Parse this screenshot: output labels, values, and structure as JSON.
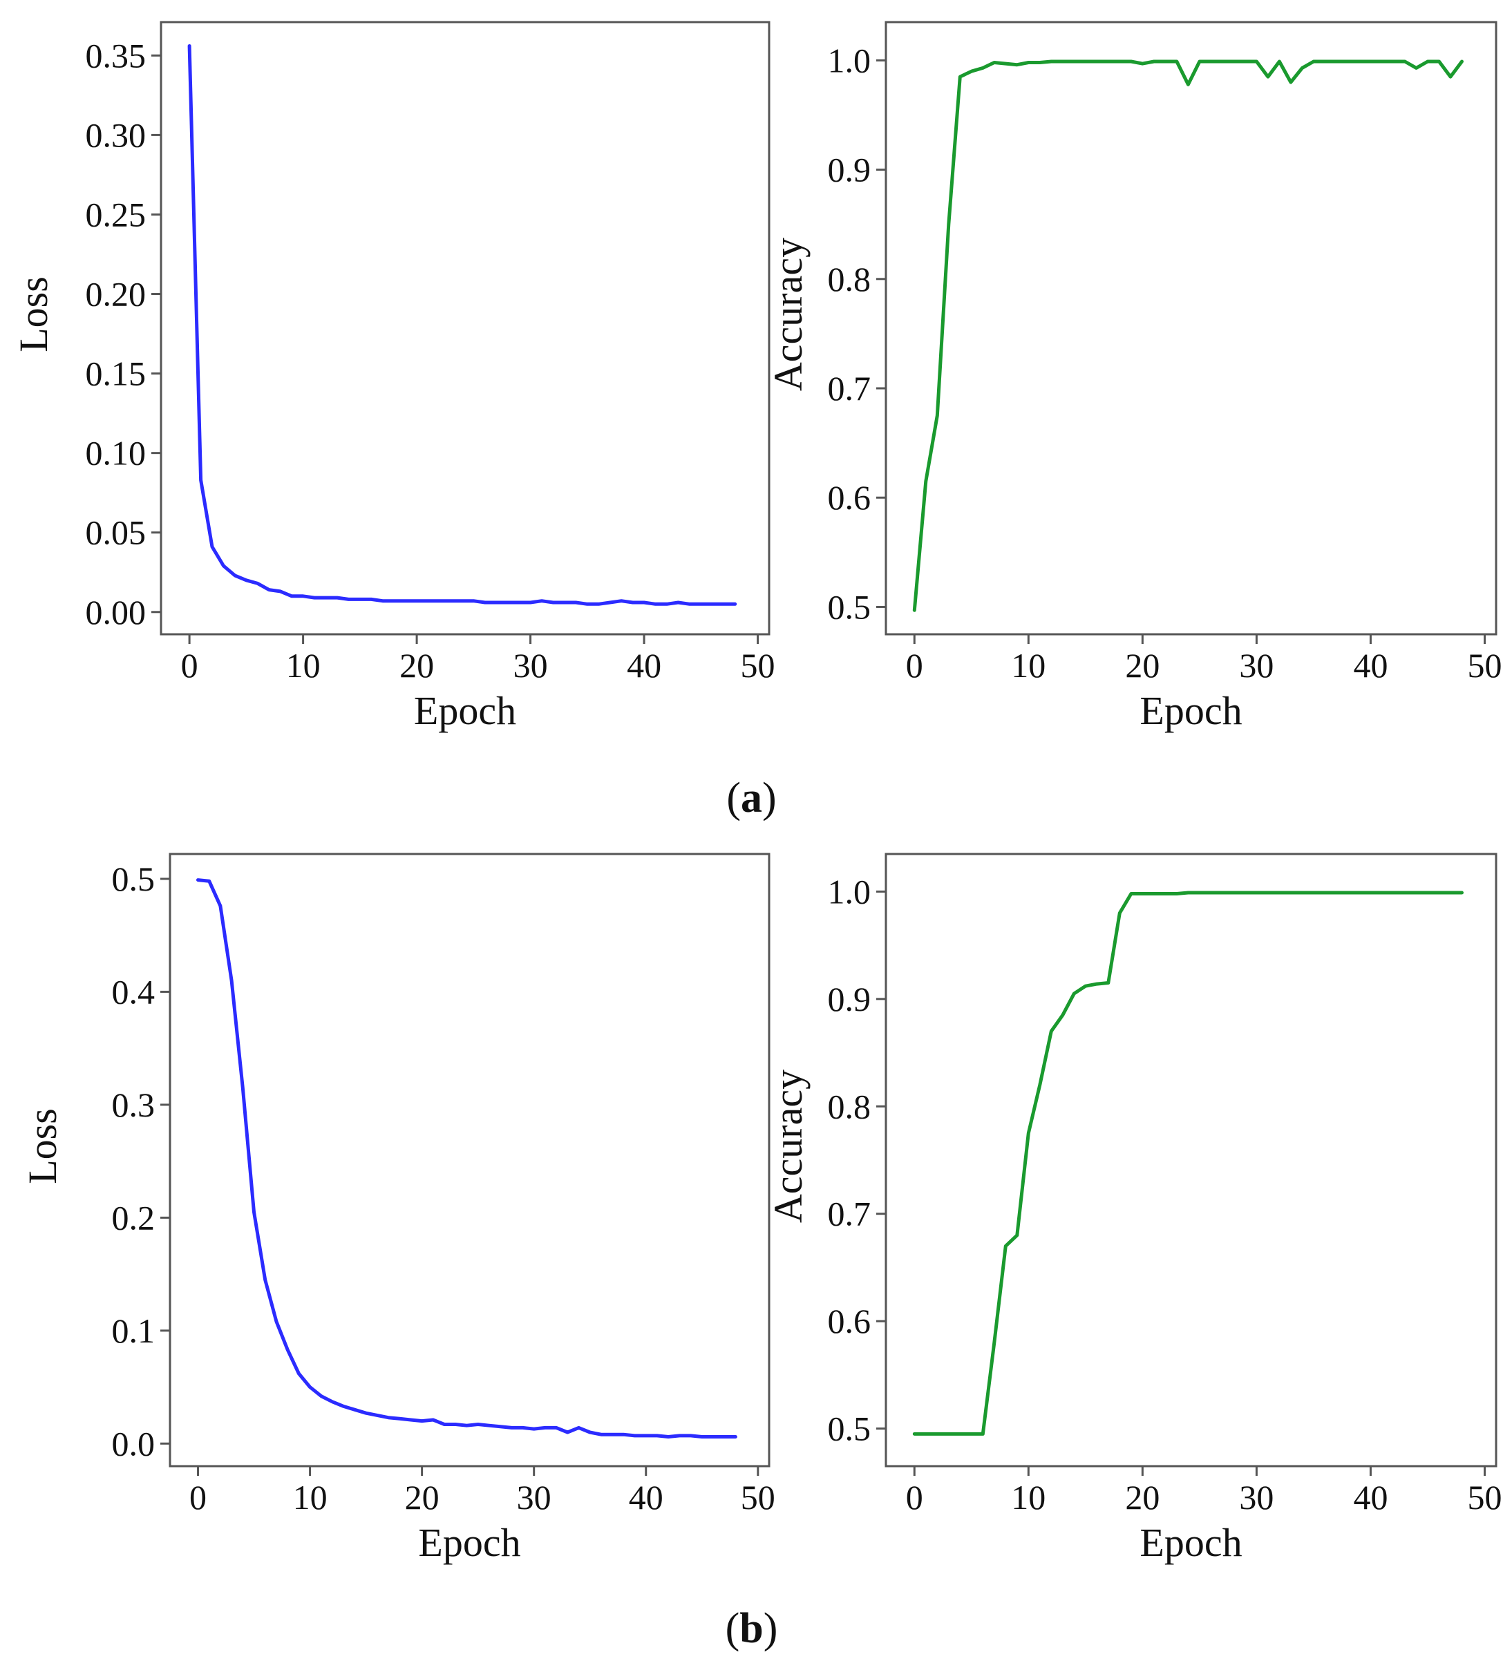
{
  "figure_labels": [
    {
      "open": "(",
      "letter": "a",
      "close": ")"
    },
    {
      "open": "(",
      "letter": "b",
      "close": ")"
    }
  ],
  "chart_data": [
    {
      "id": "a-loss",
      "type": "line",
      "xlabel": "Epoch",
      "ylabel": "Loss",
      "xlim": [
        -2.5,
        51
      ],
      "ylim": [
        -0.014,
        0.371
      ],
      "xticks": [
        0,
        10,
        20,
        30,
        40,
        50
      ],
      "yticks": [
        0.0,
        0.05,
        0.1,
        0.15,
        0.2,
        0.25,
        0.3,
        0.35
      ],
      "ytick_decimals": 2,
      "color": "#2b2bff",
      "x": [
        0,
        1,
        2,
        3,
        4,
        5,
        6,
        7,
        8,
        9,
        10,
        11,
        12,
        13,
        14,
        15,
        16,
        17,
        18,
        19,
        20,
        21,
        22,
        23,
        24,
        25,
        26,
        27,
        28,
        29,
        30,
        31,
        32,
        33,
        34,
        35,
        36,
        37,
        38,
        39,
        40,
        41,
        42,
        43,
        44,
        45,
        46,
        47,
        48
      ],
      "y": [
        0.356,
        0.083,
        0.041,
        0.029,
        0.023,
        0.02,
        0.018,
        0.014,
        0.013,
        0.01,
        0.01,
        0.009,
        0.009,
        0.009,
        0.008,
        0.008,
        0.008,
        0.007,
        0.007,
        0.007,
        0.007,
        0.007,
        0.007,
        0.007,
        0.007,
        0.007,
        0.006,
        0.006,
        0.006,
        0.006,
        0.006,
        0.007,
        0.006,
        0.006,
        0.006,
        0.005,
        0.005,
        0.006,
        0.007,
        0.006,
        0.006,
        0.005,
        0.005,
        0.006,
        0.005,
        0.005,
        0.005,
        0.005,
        0.005
      ]
    },
    {
      "id": "a-acc",
      "type": "line",
      "xlabel": "Epoch",
      "ylabel": "Accuracy",
      "xlim": [
        -2.5,
        51
      ],
      "ylim": [
        0.475,
        1.035
      ],
      "xticks": [
        0,
        10,
        20,
        30,
        40,
        50
      ],
      "yticks": [
        0.5,
        0.6,
        0.7,
        0.8,
        0.9,
        1.0
      ],
      "ytick_decimals": 1,
      "color": "#1a9a2e",
      "x": [
        0,
        1,
        2,
        3,
        4,
        5,
        6,
        7,
        8,
        9,
        10,
        11,
        12,
        13,
        14,
        15,
        16,
        17,
        18,
        19,
        20,
        21,
        22,
        23,
        24,
        25,
        26,
        27,
        28,
        29,
        30,
        31,
        32,
        33,
        34,
        35,
        36,
        37,
        38,
        39,
        40,
        41,
        42,
        43,
        44,
        45,
        46,
        47,
        48
      ],
      "y": [
        0.497,
        0.615,
        0.675,
        0.85,
        0.985,
        0.99,
        0.993,
        0.998,
        0.997,
        0.996,
        0.998,
        0.998,
        0.999,
        0.999,
        0.999,
        0.999,
        0.999,
        0.999,
        0.999,
        0.999,
        0.997,
        0.999,
        0.999,
        0.999,
        0.978,
        0.999,
        0.999,
        0.999,
        0.999,
        0.999,
        0.999,
        0.985,
        0.999,
        0.98,
        0.993,
        0.999,
        0.999,
        0.999,
        0.999,
        0.999,
        0.999,
        0.999,
        0.999,
        0.999,
        0.993,
        0.999,
        0.999,
        0.985,
        0.999
      ]
    },
    {
      "id": "b-loss",
      "type": "line",
      "xlabel": "Epoch",
      "ylabel": "Loss",
      "xlim": [
        -2.5,
        51
      ],
      "ylim": [
        -0.02,
        0.522
      ],
      "xticks": [
        0,
        10,
        20,
        30,
        40,
        50
      ],
      "yticks": [
        0.0,
        0.1,
        0.2,
        0.3,
        0.4,
        0.5
      ],
      "ytick_decimals": 1,
      "color": "#2b2bff",
      "x": [
        0,
        1,
        2,
        3,
        4,
        5,
        6,
        7,
        8,
        9,
        10,
        11,
        12,
        13,
        14,
        15,
        16,
        17,
        18,
        19,
        20,
        21,
        22,
        23,
        24,
        25,
        26,
        27,
        28,
        29,
        30,
        31,
        32,
        33,
        34,
        35,
        36,
        37,
        38,
        39,
        40,
        41,
        42,
        43,
        44,
        45,
        46,
        47,
        48
      ],
      "y": [
        0.499,
        0.498,
        0.476,
        0.41,
        0.315,
        0.205,
        0.145,
        0.108,
        0.083,
        0.062,
        0.05,
        0.042,
        0.037,
        0.033,
        0.03,
        0.027,
        0.025,
        0.023,
        0.022,
        0.021,
        0.02,
        0.021,
        0.017,
        0.017,
        0.016,
        0.017,
        0.016,
        0.015,
        0.014,
        0.014,
        0.013,
        0.014,
        0.014,
        0.01,
        0.014,
        0.01,
        0.008,
        0.008,
        0.008,
        0.007,
        0.007,
        0.007,
        0.006,
        0.007,
        0.007,
        0.006,
        0.006,
        0.006,
        0.006
      ]
    },
    {
      "id": "b-acc",
      "type": "line",
      "xlabel": "Epoch",
      "ylabel": "Accuracy",
      "xlim": [
        -2.5,
        51
      ],
      "ylim": [
        0.465,
        1.035
      ],
      "xticks": [
        0,
        10,
        20,
        30,
        40,
        50
      ],
      "yticks": [
        0.5,
        0.6,
        0.7,
        0.8,
        0.9,
        1.0
      ],
      "ytick_decimals": 1,
      "color": "#1a9a2e",
      "x": [
        0,
        1,
        2,
        3,
        4,
        5,
        6,
        7,
        8,
        9,
        10,
        11,
        12,
        13,
        14,
        15,
        16,
        17,
        18,
        19,
        20,
        21,
        22,
        23,
        24,
        25,
        26,
        27,
        28,
        29,
        30,
        31,
        32,
        33,
        34,
        35,
        36,
        37,
        38,
        39,
        40,
        41,
        42,
        43,
        44,
        45,
        46,
        47,
        48
      ],
      "y": [
        0.495,
        0.495,
        0.495,
        0.495,
        0.495,
        0.495,
        0.495,
        0.58,
        0.67,
        0.68,
        0.775,
        0.82,
        0.87,
        0.885,
        0.905,
        0.912,
        0.914,
        0.915,
        0.98,
        0.998,
        0.998,
        0.998,
        0.998,
        0.998,
        0.999,
        0.999,
        0.999,
        0.999,
        0.999,
        0.999,
        0.999,
        0.999,
        0.999,
        0.999,
        0.999,
        0.999,
        0.999,
        0.999,
        0.999,
        0.999,
        0.999,
        0.999,
        0.999,
        0.999,
        0.999,
        0.999,
        0.999,
        0.999,
        0.999
      ]
    }
  ]
}
